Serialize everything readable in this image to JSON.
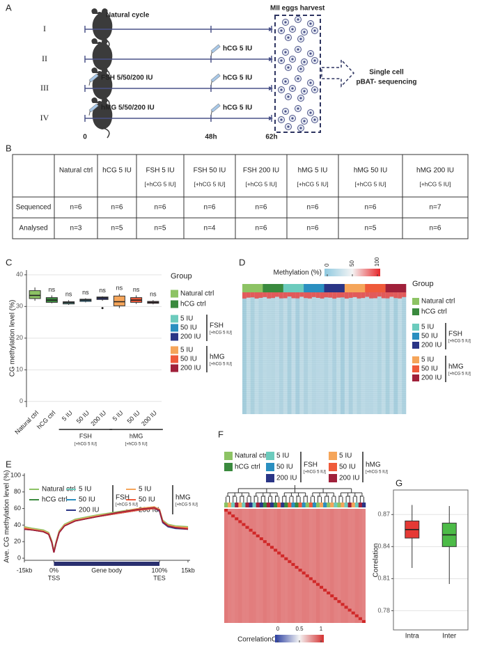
{
  "panel_labels": [
    "A",
    "B",
    "C",
    "D",
    "E",
    "F",
    "G"
  ],
  "scheme": {
    "rows": [
      "I",
      "II",
      "III",
      "IV"
    ],
    "natural_cycle": "Natural cycle",
    "hcg": [
      "hCG 5 IU",
      "hCG 5 IU",
      "hCG 5 IU"
    ],
    "fsh": "FSH 5/50/200 IU",
    "hmg": "hMG 5/50/200 IU",
    "harvest": "MII eggs harvest",
    "sequencing": [
      "Single cell",
      "pBAT- sequencing"
    ],
    "times": [
      "0",
      "48h",
      "62h"
    ]
  },
  "table": {
    "header": [
      [
        "Natural ctrl"
      ],
      [
        "hCG 5 IU"
      ],
      [
        "FSH 5 IU",
        "[+hCG 5 IU]"
      ],
      [
        "FSH 50 IU",
        "[+hCG 5 IU]"
      ],
      [
        "FSH 200 IU",
        "[+hCG 5 IU]"
      ],
      [
        "hMG 5 IU",
        "[+hCG 5 IU]"
      ],
      [
        "hMG 50 IU",
        "[+hCG 5 IU]"
      ],
      [
        "hMG 200 IU",
        "[+hCG 5 IU]"
      ]
    ],
    "rows": [
      {
        "label": "Sequenced",
        "cells": [
          "n=6",
          "n=6",
          "n=6",
          "n=6",
          "n=6",
          "n=6",
          "n=6",
          "n=7"
        ]
      },
      {
        "label": "Analysed",
        "cells": [
          "n=3",
          "n=5",
          "n=5",
          "n=4",
          "n=6",
          "n=6",
          "n=5",
          "n=6"
        ]
      }
    ]
  },
  "groups": {
    "title": "Group",
    "fsh": "FSH",
    "hmg": "hMG",
    "sub": "[+hCG 5 IU]",
    "items": [
      {
        "name": "Natural ctrl",
        "color": "#8dc364"
      },
      {
        "name": "hCG ctrl",
        "color": "#3a8a3e"
      },
      {
        "name": "5 IU",
        "color": "#6ccbbd"
      },
      {
        "name": "50 IU",
        "color": "#2a8fc0"
      },
      {
        "name": "200 IU",
        "color": "#2a3586"
      },
      {
        "name": "5 IU",
        "color": "#f5a55a"
      },
      {
        "name": "50 IU",
        "color": "#ef5a3a"
      },
      {
        "name": "200 IU",
        "color": "#a0203a"
      }
    ]
  },
  "chart_data": [
    {
      "type": "box",
      "ylabel": "CG methylation level (%)",
      "categories": [
        "Natural ctrl",
        "hCG ctrl",
        "5 IU",
        "50 IU",
        "200 IU",
        "5 IU",
        "50 IU",
        "200 IU"
      ],
      "min": [
        31.8,
        31,
        30.5,
        31.3,
        31.8,
        29.5,
        30.8,
        30.7
      ],
      "q1": [
        32.5,
        31.3,
        30.8,
        31.6,
        32.2,
        30.2,
        31.3,
        31
      ],
      "median": [
        33.5,
        32,
        31.2,
        32,
        32.7,
        31.5,
        32,
        31.3
      ],
      "q3": [
        35,
        32.8,
        31.5,
        32.3,
        33,
        33.3,
        32.8,
        31.6
      ],
      "max": [
        36,
        33.5,
        32,
        32.6,
        33.2,
        34,
        33.5,
        32
      ],
      "outliers": [
        [],
        [],
        [],
        [],
        [
          29.5
        ],
        [],
        [],
        []
      ],
      "annotations": [
        null,
        "ns",
        "ns",
        "ns",
        "ns",
        "ns",
        "ns",
        "ns"
      ],
      "group_labels": [
        {
          "label": "FSH",
          "sub": "[+hCG 5 IU]"
        },
        {
          "label": "hMG",
          "sub": "[+hCG 5 IU]"
        }
      ],
      "ylim": [
        -1.8,
        41.5
      ],
      "yticks": [
        0,
        10,
        20,
        30,
        40
      ],
      "grid": true
    },
    {
      "type": "heatmap",
      "legend_title": "Methylation (%)",
      "scale_ticks": [
        0,
        50,
        100
      ]
    },
    {
      "type": "line",
      "ylabel": "Ave. CG methylation level (%)",
      "x": [
        -0.28,
        -0.2,
        -0.1,
        -0.05,
        -0.02,
        0,
        0.02,
        0.05,
        0.1,
        0.2,
        0.4,
        0.6,
        0.8,
        0.95,
        1.0,
        1.03,
        1.08,
        1.15,
        1.27
      ],
      "xlim": [
        -0.28,
        1.29
      ],
      "xticks": [
        {
          "value": -0.28,
          "label": "-15kb"
        },
        {
          "value": 0,
          "label": "0%"
        },
        {
          "value": 1,
          "label": "100%"
        },
        {
          "value": 1.27,
          "label": "15kb"
        }
      ],
      "region_labels": [
        "TSS",
        "Gene body",
        "TES"
      ],
      "ylim": [
        -2.5,
        102.5
      ],
      "yticks": [
        0,
        20,
        40,
        60,
        80,
        100
      ],
      "series": [
        {
          "name": "Natural ctrl",
          "color": "#8dc364",
          "values": [
            38,
            36,
            34,
            31,
            21,
            9,
            20,
            33,
            41,
            47,
            52,
            56,
            60,
            62,
            59,
            46,
            41,
            39,
            38
          ]
        },
        {
          "name": "hCG ctrl",
          "color": "#3a8a3e",
          "values": [
            37,
            35,
            33,
            30,
            20,
            8,
            19,
            32,
            40,
            46,
            51,
            55,
            59,
            61,
            58,
            45,
            40,
            38,
            37
          ]
        },
        {
          "name": "5 IU",
          "color": "#6ccbbd",
          "values": [
            36,
            35,
            33,
            30,
            20,
            8,
            19,
            32,
            40,
            46,
            51,
            55,
            59,
            61,
            58,
            44,
            39,
            37,
            36
          ]
        },
        {
          "name": "50 IU",
          "color": "#2a8fc0",
          "values": [
            36,
            34,
            32,
            29,
            19,
            7,
            18,
            31,
            39,
            45,
            50,
            54,
            58,
            60,
            57,
            44,
            39,
            37,
            36
          ]
        },
        {
          "name": "200 IU",
          "color": "#2a3586",
          "values": [
            35,
            34,
            32,
            29,
            19,
            7,
            18,
            31,
            39,
            45,
            50,
            54,
            58,
            60,
            57,
            43,
            38,
            36,
            35
          ]
        },
        {
          "name": "5 IU",
          "color": "#f5a55a",
          "values": [
            37,
            35,
            33,
            30,
            20,
            8,
            19,
            32,
            40,
            46,
            51,
            55,
            60,
            62,
            59,
            45,
            40,
            38,
            37
          ]
        },
        {
          "name": "50 IU",
          "color": "#ef5a3a",
          "values": [
            36,
            34,
            32,
            29,
            19,
            7,
            18,
            31,
            39,
            45,
            50,
            54,
            58,
            60,
            58,
            44,
            39,
            37,
            36
          ]
        },
        {
          "name": "200 IU",
          "color": "#a0203a",
          "values": [
            35,
            34,
            32,
            29,
            19,
            7,
            18,
            31,
            39,
            45,
            50,
            55,
            59,
            61,
            58,
            44,
            39,
            37,
            35
          ]
        }
      ]
    },
    {
      "type": "heatmap",
      "legend_title": "Correlation",
      "scale_ticks": [
        0,
        0.5,
        1
      ]
    },
    {
      "type": "box",
      "ylabel": "Correlation",
      "categories": [
        "Intra",
        "Inter"
      ],
      "colors": [
        "#e53935",
        "#4cbb47"
      ],
      "min": [
        0.82,
        0.805
      ],
      "q1": [
        0.848,
        0.84
      ],
      "median": [
        0.856,
        0.851
      ],
      "q3": [
        0.864,
        0.862
      ],
      "max": [
        0.879,
        0.878
      ],
      "ylim": [
        0.762,
        0.893
      ],
      "yticks": [
        0.78,
        0.81,
        0.84,
        0.87
      ],
      "grid": true
    }
  ]
}
